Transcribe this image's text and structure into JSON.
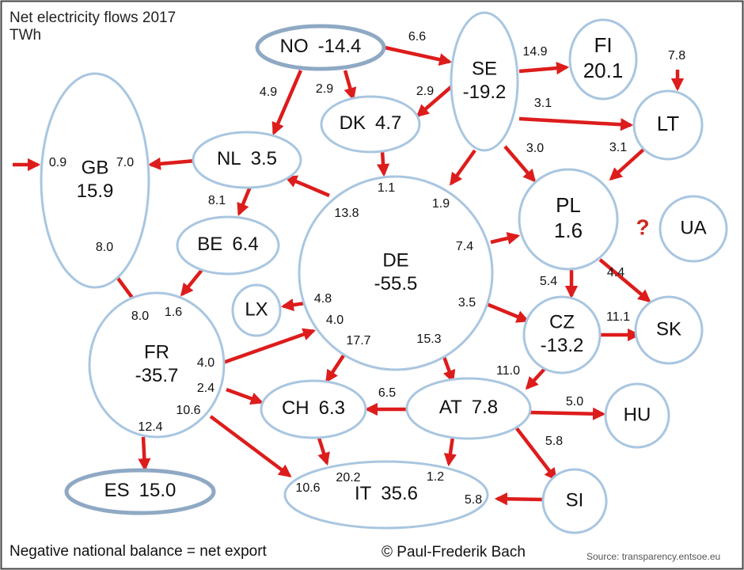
{
  "title": "Net electricity flows 2017",
  "unit": "TWh",
  "footer_note": "Negative national balance = net export",
  "copyright": "© Paul-Frederik Bach",
  "source": "Source: transparency.entsoe.eu",
  "unknown_marker": "?",
  "colors": {
    "node_stroke": "#a9c6e0",
    "flow": "#dd1c1c",
    "marker": "#cc2a1f"
  },
  "nodes": [
    {
      "id": "NO",
      "name": "NO",
      "balance": "-14.4"
    },
    {
      "id": "SE",
      "name": "SE",
      "balance": "-19.2"
    },
    {
      "id": "FI",
      "name": "FI",
      "balance": "20.1"
    },
    {
      "id": "LT",
      "name": "LT",
      "balance": ""
    },
    {
      "id": "GB",
      "name": "GB",
      "balance": "15.9"
    },
    {
      "id": "DK",
      "name": "DK",
      "balance": "4.7"
    },
    {
      "id": "NL",
      "name": "NL",
      "balance": "3.5"
    },
    {
      "id": "BE",
      "name": "BE",
      "balance": "6.4"
    },
    {
      "id": "DE",
      "name": "DE",
      "balance": "-55.5"
    },
    {
      "id": "PL",
      "name": "PL",
      "balance": "1.6"
    },
    {
      "id": "UA",
      "name": "UA",
      "balance": ""
    },
    {
      "id": "LX",
      "name": "LX",
      "balance": ""
    },
    {
      "id": "FR",
      "name": "FR",
      "balance": "-35.7"
    },
    {
      "id": "CZ",
      "name": "CZ",
      "balance": "-13.2"
    },
    {
      "id": "SK",
      "name": "SK",
      "balance": ""
    },
    {
      "id": "CH",
      "name": "CH",
      "balance": "6.3"
    },
    {
      "id": "AT",
      "name": "AT",
      "balance": "7.8"
    },
    {
      "id": "HU",
      "name": "HU",
      "balance": ""
    },
    {
      "id": "ES",
      "name": "ES",
      "balance": "15.0"
    },
    {
      "id": "IT",
      "name": "IT",
      "balance": "35.6"
    },
    {
      "id": "SI",
      "name": "SI",
      "balance": ""
    }
  ],
  "flows": [
    {
      "from": "NO",
      "to": "SE",
      "value": "6.6"
    },
    {
      "from": "NO",
      "to": "NL",
      "value": "4.9"
    },
    {
      "from": "NO",
      "to": "DK",
      "value": "2.9"
    },
    {
      "from": "SE",
      "to": "DK",
      "value": "2.9"
    },
    {
      "from": "SE",
      "to": "FI",
      "value": "14.9"
    },
    {
      "from": "SE",
      "to": "LT",
      "value": "3.1"
    },
    {
      "from": "SE",
      "to": "PL",
      "value": "3.0"
    },
    {
      "from": "SE",
      "to": "DE",
      "value": "1.9"
    },
    {
      "from": "external",
      "to": "LT",
      "value": "7.8"
    },
    {
      "from": "LT",
      "to": "PL",
      "value": "3.1"
    },
    {
      "from": "external",
      "to": "GB",
      "value": "0.9"
    },
    {
      "from": "NL",
      "to": "GB",
      "value": "7.0"
    },
    {
      "from": "DK",
      "to": "DE",
      "value": "1.1"
    },
    {
      "from": "NL",
      "to": "BE",
      "value": "8.1"
    },
    {
      "from": "DE",
      "to": "NL",
      "value": "13.8"
    },
    {
      "from": "DE",
      "to": "PL",
      "value": "7.4"
    },
    {
      "from": "BE",
      "to": "FR",
      "value": "1.6"
    },
    {
      "from": "FR",
      "to": "GB",
      "value": "8.0",
      "end_value": "8.0"
    },
    {
      "from": "DE",
      "to": "LX",
      "value": "4.8"
    },
    {
      "from": "FR",
      "to": "DE",
      "value": "4.0",
      "end_value": "4.0"
    },
    {
      "from": "DE",
      "to": "CZ",
      "value": "3.5"
    },
    {
      "from": "PL",
      "to": "CZ",
      "value": "5.4"
    },
    {
      "from": "PL",
      "to": "SK",
      "value": "4.4"
    },
    {
      "from": "CZ",
      "to": "SK",
      "value": "11.1"
    },
    {
      "from": "DE",
      "to": "CH",
      "value": "17.7"
    },
    {
      "from": "DE",
      "to": "AT",
      "value": "15.3"
    },
    {
      "from": "CZ",
      "to": "AT",
      "value": "11.0"
    },
    {
      "from": "FR",
      "to": "CH",
      "value": "2.4"
    },
    {
      "from": "AT",
      "to": "CH",
      "value": "6.5"
    },
    {
      "from": "AT",
      "to": "HU",
      "value": "5.0"
    },
    {
      "from": "AT",
      "to": "SI",
      "value": "5.8"
    },
    {
      "from": "FR",
      "to": "ES",
      "value": "12.4"
    },
    {
      "from": "FR",
      "to": "IT",
      "value": "10.6",
      "end_value": "10.6"
    },
    {
      "from": "CH",
      "to": "IT",
      "value": "20.2"
    },
    {
      "from": "AT",
      "to": "IT",
      "value": "1.2"
    },
    {
      "from": "SI",
      "to": "IT",
      "value": "5.8"
    }
  ]
}
